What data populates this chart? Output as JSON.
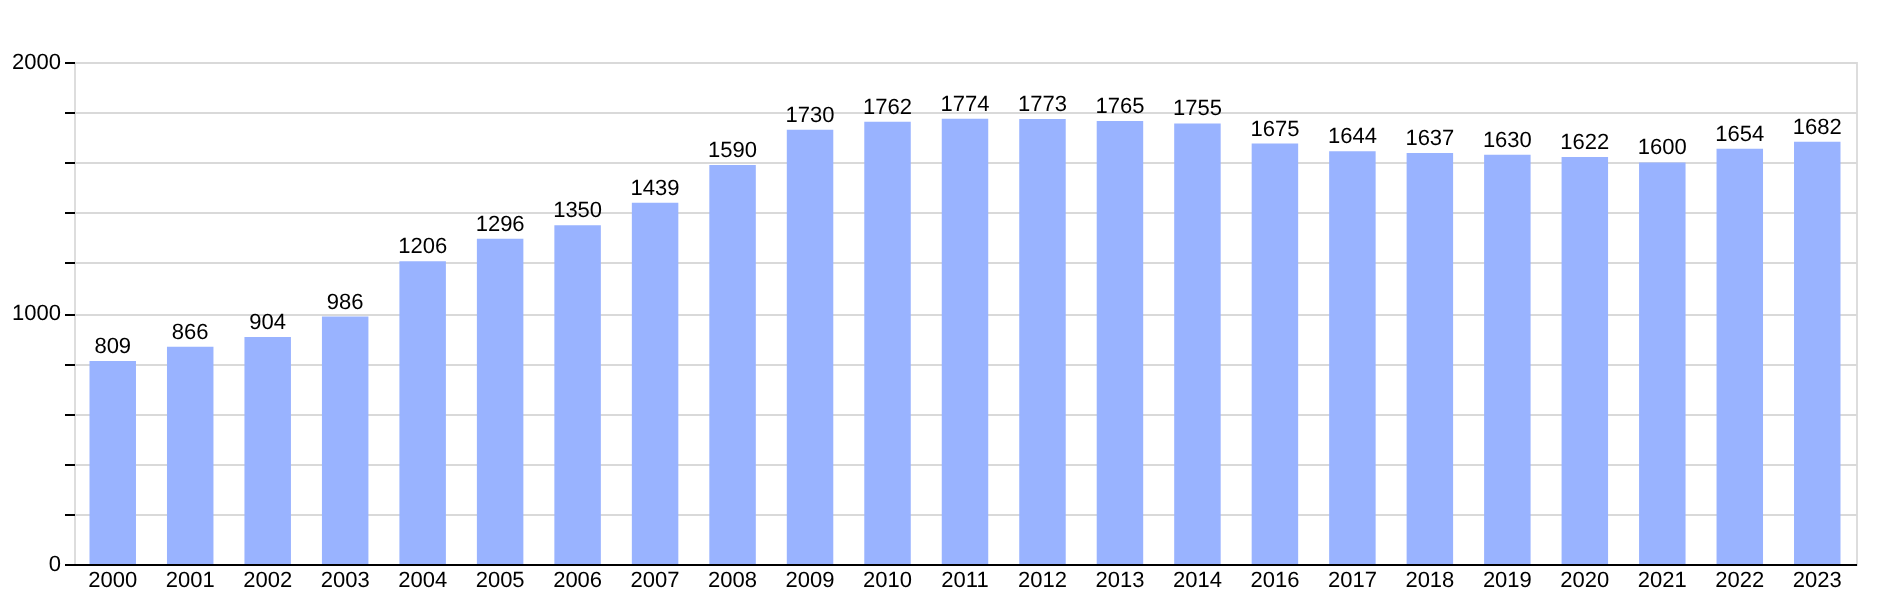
{
  "chart_data": {
    "type": "bar",
    "categories": [
      "2000",
      "2001",
      "2002",
      "2003",
      "2004",
      "2005",
      "2006",
      "2007",
      "2008",
      "2009",
      "2010",
      "2011",
      "2012",
      "2013",
      "2014",
      "2016",
      "2017",
      "2018",
      "2019",
      "2020",
      "2021",
      "2022",
      "2023"
    ],
    "values": [
      809,
      866,
      904,
      986,
      1206,
      1296,
      1350,
      1439,
      1590,
      1730,
      1762,
      1774,
      1773,
      1765,
      1755,
      1675,
      1644,
      1637,
      1630,
      1622,
      1600,
      1654,
      1682
    ],
    "color": "#99b3ff",
    "ylim": [
      0,
      2000
    ],
    "yticks": [
      0,
      {
        "value": 200,
        "label": null
      },
      {
        "value": 400,
        "label": null
      },
      {
        "value": 600,
        "label": null
      },
      {
        "value": 800,
        "label": null
      },
      1000,
      {
        "value": 1200,
        "label": null
      },
      {
        "value": 1400,
        "label": null
      },
      {
        "value": 1600,
        "label": null
      },
      {
        "value": 1800,
        "label": null
      },
      2000
    ],
    "grid": true,
    "data_labels": true
  }
}
